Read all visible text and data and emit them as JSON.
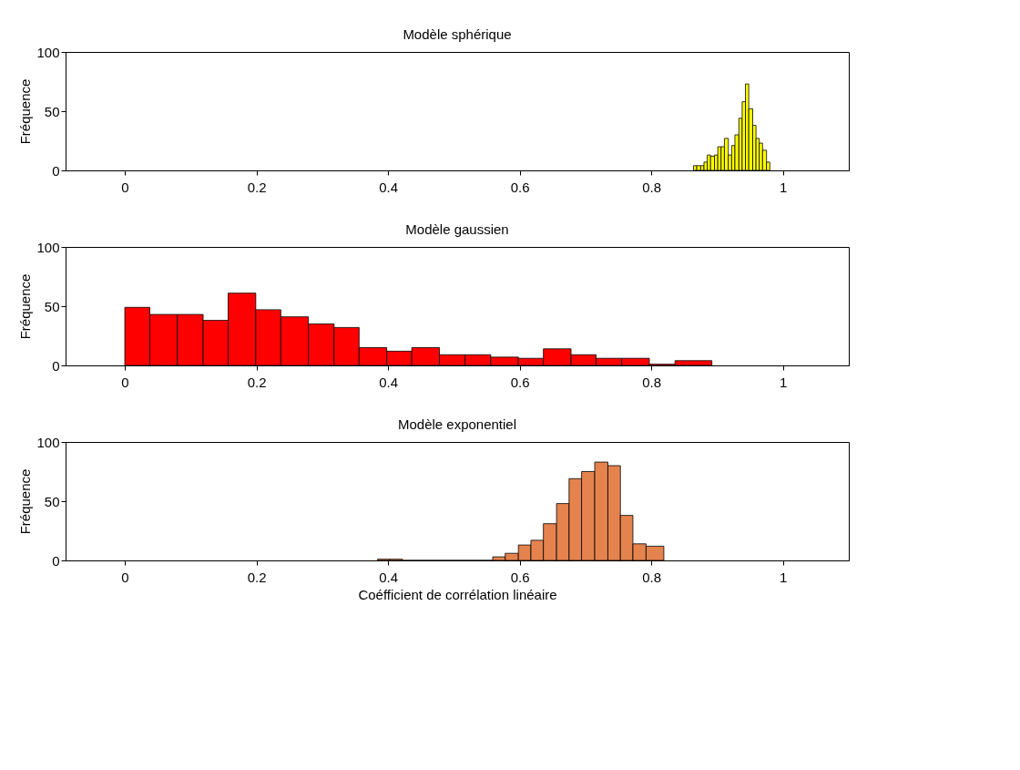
{
  "chart_data": [
    {
      "type": "histogram",
      "title": "Modèle sphérique",
      "ylabel": "Fréquence",
      "xlim": [
        -0.09,
        1.1
      ],
      "ylim": [
        0,
        100
      ],
      "xticks": [
        0,
        0.2,
        0.4,
        0.6,
        0.8,
        1
      ],
      "yticks": [
        0,
        50,
        100
      ],
      "grid": false,
      "bins": [
        0.864,
        0.869,
        0.875,
        0.88,
        0.885,
        0.89,
        0.896,
        0.901,
        0.906,
        0.911,
        0.917,
        0.922,
        0.927,
        0.933,
        0.938,
        0.943,
        0.948,
        0.954,
        0.959,
        0.964,
        0.969,
        0.975,
        0.98
      ],
      "series": [
        {
          "color": "#ffff00",
          "values": [
            4,
            4,
            4,
            7,
            13,
            12,
            13,
            20,
            20,
            27,
            13,
            21,
            30,
            44,
            58,
            73,
            52,
            38,
            27,
            23,
            17,
            7
          ]
        }
      ]
    },
    {
      "type": "histogram",
      "title": "Modèle gaussien",
      "ylabel": "Fréquence",
      "xlim": [
        -0.09,
        1.1
      ],
      "ylim": [
        0,
        100
      ],
      "xticks": [
        0,
        0.2,
        0.4,
        0.6,
        0.8,
        1
      ],
      "yticks": [
        0,
        50,
        100
      ],
      "grid": false,
      "bins": [
        0,
        0.038,
        0.08,
        0.119,
        0.157,
        0.199,
        0.237,
        0.279,
        0.318,
        0.356,
        0.398,
        0.436,
        0.478,
        0.517,
        0.556,
        0.598,
        0.636,
        0.678,
        0.716,
        0.755,
        0.797,
        0.836,
        0.892
      ],
      "series": [
        {
          "color": "#ff0000",
          "values": [
            49,
            43,
            43,
            38,
            61,
            47,
            41,
            35,
            32,
            15,
            12,
            15,
            9,
            9,
            7,
            6,
            14,
            9,
            6,
            6,
            1,
            4
          ]
        }
      ]
    },
    {
      "type": "histogram",
      "title": "Modèle exponentiel",
      "ylabel": "Fréquence",
      "xlabel": "Coéfficient de corrélation linéaire",
      "xlim": [
        -0.09,
        1.1
      ],
      "ylim": [
        0,
        100
      ],
      "xticks": [
        0,
        0.2,
        0.4,
        0.6,
        0.8,
        1
      ],
      "yticks": [
        0,
        50,
        100
      ],
      "grid": false,
      "bins": [
        0.384,
        0.403,
        0.422,
        0.559,
        0.578,
        0.598,
        0.617,
        0.636,
        0.656,
        0.675,
        0.694,
        0.714,
        0.734,
        0.753,
        0.772,
        0.792,
        0.819
      ],
      "series": [
        {
          "color": "#e5834f",
          "values": [
            1,
            1,
            0,
            3,
            6,
            13,
            17,
            31,
            48,
            69,
            75,
            83,
            80,
            38,
            14,
            12
          ]
        }
      ]
    }
  ]
}
